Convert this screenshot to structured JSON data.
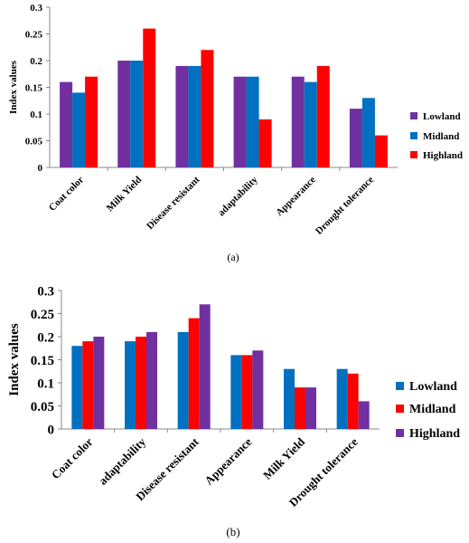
{
  "chart_data": [
    {
      "type": "bar",
      "panel": "a",
      "caption": "(a)",
      "ylabel": "Index values",
      "ylim": [
        0,
        0.3
      ],
      "yticks": [
        "0",
        "0.05",
        "0.1",
        "0.15",
        "0.2",
        "0.25",
        "0.3"
      ],
      "categories": [
        "Coat color",
        "Milk Yield",
        "Disease resistant",
        "adaptability",
        "Appearance",
        "Drought tolerance"
      ],
      "series": [
        {
          "name": "Lowland",
          "color": "#7030A0",
          "values": [
            0.16,
            0.2,
            0.19,
            0.17,
            0.17,
            0.11
          ]
        },
        {
          "name": "Midland",
          "color": "#0070C0",
          "values": [
            0.14,
            0.2,
            0.19,
            0.17,
            0.16,
            0.13
          ]
        },
        {
          "name": "Highland",
          "color": "#FF0000",
          "values": [
            0.17,
            0.26,
            0.22,
            0.09,
            0.19,
            0.06
          ]
        }
      ],
      "legend": "right",
      "grid": false
    },
    {
      "type": "bar",
      "panel": "b",
      "caption": "(b)",
      "ylabel": "Index values",
      "ylim": [
        0,
        0.3
      ],
      "yticks": [
        "0",
        "0.05",
        "0.1",
        "0.15",
        "0.2",
        "0.25",
        "0.3"
      ],
      "categories": [
        "Coat color",
        "adaptability",
        "Disease resistant",
        "Appearance",
        "Milk Yield",
        "Drought tolerance"
      ],
      "series": [
        {
          "name": "Lowland",
          "color": "#0070C0",
          "values": [
            0.18,
            0.19,
            0.21,
            0.16,
            0.13,
            0.13
          ]
        },
        {
          "name": "Midland",
          "color": "#FF0000",
          "values": [
            0.19,
            0.2,
            0.24,
            0.16,
            0.09,
            0.12
          ]
        },
        {
          "name": "Highland",
          "color": "#7030A0",
          "values": [
            0.2,
            0.21,
            0.27,
            0.17,
            0.09,
            0.06
          ]
        }
      ],
      "legend": "right",
      "grid": false
    }
  ]
}
